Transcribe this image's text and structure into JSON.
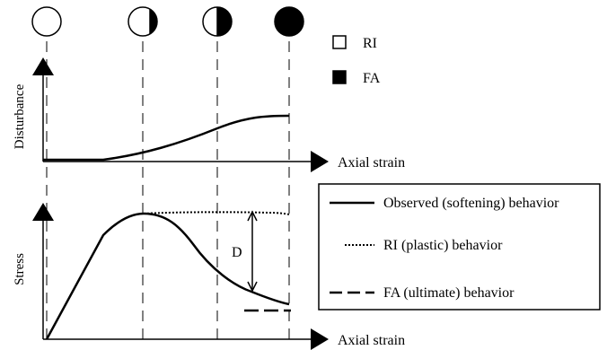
{
  "top_plot": {
    "y_label": "Disturbance",
    "x_label": "Axial strain",
    "legend": [
      {
        "label": "RI",
        "swatch": "white"
      },
      {
        "label": "FA",
        "swatch": "black"
      }
    ],
    "phase_circles": [
      "empty",
      "small-black-sector",
      "half-black",
      "full-black"
    ]
  },
  "bottom_plot": {
    "y_label": "Stress",
    "x_label": "Axial strain",
    "annotation": "D",
    "legend": [
      {
        "label": "Observed (softening) behavior",
        "line_style": "solid"
      },
      {
        "label": "RI (plastic) behavior",
        "line_style": "dotted"
      },
      {
        "label": "FA (ultimate) behavior",
        "line_style": "dashed"
      }
    ]
  },
  "colors": {
    "ink": "#000000",
    "background": "#ffffff"
  }
}
